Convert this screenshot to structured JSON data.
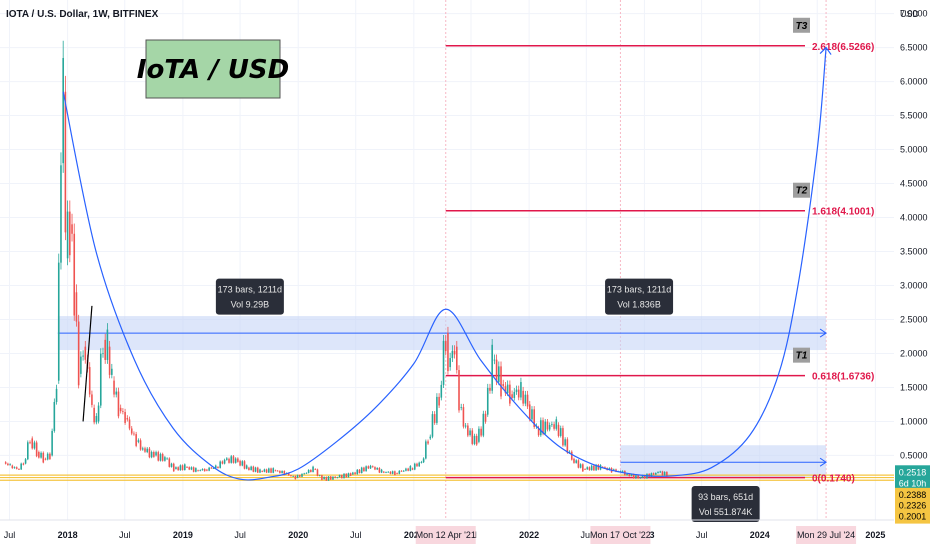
{
  "header": {
    "symbol_title": "IOTA / U.S. Dollar, 1W, BITFINEX",
    "big_label": "IoTA / USD",
    "currency": "USD"
  },
  "colors": {
    "up": "#26a69a",
    "down": "#ef5350",
    "fib": "#e0174b",
    "curve": "#2962ff",
    "zone": "#c7d6f7",
    "support": "#f5c542",
    "big_label_bg": "#a5d6a7"
  },
  "chart_data": {
    "type": "line",
    "title": "IOTA / U.S. Dollar, 1W, BITFINEX",
    "ylabel": "USD",
    "xlim": [
      "2017-06-01",
      "2025-03-01"
    ],
    "ylim": [
      -0.45,
      7.2
    ],
    "x_ticks": [
      {
        "label": "Jul",
        "date": "2017-07-01"
      },
      {
        "label": "2018",
        "date": "2018-01-01"
      },
      {
        "label": "Jul",
        "date": "2018-07-01"
      },
      {
        "label": "2019",
        "date": "2019-01-01"
      },
      {
        "label": "Jul",
        "date": "2019-07-01"
      },
      {
        "label": "2020",
        "date": "2020-01-01"
      },
      {
        "label": "Jul",
        "date": "2020-07-01"
      },
      {
        "label": "2021",
        "date": "2021-01-01"
      },
      {
        "label": "Jul",
        "date": "2021-07-01"
      },
      {
        "label": "2022",
        "date": "2022-01-01"
      },
      {
        "label": "Jul",
        "date": "2022-07-01"
      },
      {
        "label": "2023",
        "date": "2023-01-01"
      },
      {
        "label": "Jul",
        "date": "2023-07-01"
      },
      {
        "label": "2024",
        "date": "2024-01-01"
      },
      {
        "label": "Jul",
        "date": "2024-07-01"
      },
      {
        "label": "2025",
        "date": "2025-01-01"
      }
    ],
    "y_ticks": [
      {
        "label": "7.0000",
        "value": 7.0
      },
      {
        "label": "6.5000",
        "value": 6.5
      },
      {
        "label": "6.0000",
        "value": 6.0
      },
      {
        "label": "5.5000",
        "value": 5.5
      },
      {
        "label": "5.0000",
        "value": 5.0
      },
      {
        "label": "4.5000",
        "value": 4.5
      },
      {
        "label": "4.0000",
        "value": 4.0
      },
      {
        "label": "3.5000",
        "value": 3.5
      },
      {
        "label": "3.0000",
        "value": 3.0
      },
      {
        "label": "2.5000",
        "value": 2.5
      },
      {
        "label": "2.0000",
        "value": 2.0
      },
      {
        "label": "1.5000",
        "value": 1.5
      },
      {
        "label": "1.0000",
        "value": 1.0
      },
      {
        "label": "0.5000",
        "value": 0.5
      }
    ],
    "date_highlights": [
      {
        "label": "Mon 12 Apr '21",
        "date": "2021-04-12"
      },
      {
        "label": "Mon 17 Oct '22",
        "date": "2022-10-17"
      },
      {
        "label": "Mon 29 Jul '24",
        "date": "2024-07-29"
      }
    ],
    "price_series": {
      "name": "",
      "points": [
        [
          "2017-06-12",
          0.4
        ],
        [
          "2017-07-03",
          0.35
        ],
        [
          "2017-07-24",
          0.3
        ],
        [
          "2017-08-14",
          0.38
        ],
        [
          "2017-09-04",
          0.75
        ],
        [
          "2017-09-25",
          0.55
        ],
        [
          "2017-10-16",
          0.45
        ],
        [
          "2017-11-06",
          0.5
        ],
        [
          "2017-11-27",
          1.6
        ],
        [
          "2017-12-11",
          4.8
        ],
        [
          "2017-12-18",
          5.85
        ],
        [
          "2017-12-25",
          3.4
        ],
        [
          "2018-01-08",
          3.9
        ],
        [
          "2018-01-22",
          2.9
        ],
        [
          "2018-02-05",
          1.7
        ],
        [
          "2018-02-19",
          2.1
        ],
        [
          "2018-03-05",
          1.8
        ],
        [
          "2018-03-19",
          1.2
        ],
        [
          "2018-04-02",
          1.0
        ],
        [
          "2018-04-23",
          2.2
        ],
        [
          "2018-05-07",
          2.1
        ],
        [
          "2018-05-21",
          1.6
        ],
        [
          "2018-06-11",
          1.2
        ],
        [
          "2018-07-02",
          1.05
        ],
        [
          "2018-08-06",
          0.7
        ],
        [
          "2018-09-03",
          0.55
        ],
        [
          "2018-10-01",
          0.5
        ],
        [
          "2018-11-05",
          0.45
        ],
        [
          "2018-12-03",
          0.3
        ],
        [
          "2019-01-07",
          0.33
        ],
        [
          "2019-02-11",
          0.28
        ],
        [
          "2019-03-11",
          0.29
        ],
        [
          "2019-04-15",
          0.33
        ],
        [
          "2019-05-20",
          0.45
        ],
        [
          "2019-06-24",
          0.42
        ],
        [
          "2019-07-22",
          0.32
        ],
        [
          "2019-09-02",
          0.27
        ],
        [
          "2019-10-14",
          0.28
        ],
        [
          "2019-11-18",
          0.24
        ],
        [
          "2019-12-23",
          0.17
        ],
        [
          "2020-02-17",
          0.3
        ],
        [
          "2020-03-16",
          0.15
        ],
        [
          "2020-05-04",
          0.18
        ],
        [
          "2020-06-15",
          0.22
        ],
        [
          "2020-08-17",
          0.34
        ],
        [
          "2020-09-21",
          0.26
        ],
        [
          "2020-11-02",
          0.24
        ],
        [
          "2020-12-21",
          0.31
        ],
        [
          "2021-01-25",
          0.4
        ],
        [
          "2021-02-15",
          0.75
        ],
        [
          "2021-03-22",
          1.35
        ],
        [
          "2021-04-12",
          2.3
        ],
        [
          "2021-04-19",
          1.8
        ],
        [
          "2021-05-10",
          2.1
        ],
        [
          "2021-05-24",
          1.2
        ],
        [
          "2021-06-21",
          0.8
        ],
        [
          "2021-07-19",
          0.7
        ],
        [
          "2021-08-16",
          1.1
        ],
        [
          "2021-09-06",
          1.9
        ],
        [
          "2021-10-04",
          1.55
        ],
        [
          "2021-11-01",
          1.4
        ],
        [
          "2021-12-06",
          1.45
        ],
        [
          "2021-12-27",
          1.25
        ],
        [
          "2022-01-24",
          0.9
        ],
        [
          "2022-03-28",
          0.95
        ],
        [
          "2022-05-16",
          0.45
        ],
        [
          "2022-06-20",
          0.3
        ],
        [
          "2022-08-15",
          0.33
        ],
        [
          "2022-09-19",
          0.28
        ],
        [
          "2022-10-17",
          0.26
        ],
        [
          "2022-11-14",
          0.2
        ],
        [
          "2022-12-19",
          0.17
        ],
        [
          "2023-02-13",
          0.25
        ],
        [
          "2023-03-13",
          0.22
        ]
      ]
    },
    "cycle_curve": {
      "name": "",
      "points": [
        [
          "2017-12-18",
          5.85
        ],
        [
          "2018-04-01",
          3.5
        ],
        [
          "2018-08-01",
          1.9
        ],
        [
          "2018-12-01",
          0.9
        ],
        [
          "2019-04-01",
          0.35
        ],
        [
          "2019-07-01",
          0.15
        ],
        [
          "2019-10-01",
          0.18
        ],
        [
          "2020-01-01",
          0.3
        ],
        [
          "2020-05-01",
          0.7
        ],
        [
          "2020-09-01",
          1.2
        ],
        [
          "2021-01-01",
          1.85
        ],
        [
          "2021-04-12",
          2.65
        ],
        [
          "2021-08-01",
          1.9
        ],
        [
          "2021-12-01",
          1.2
        ],
        [
          "2022-04-01",
          0.65
        ],
        [
          "2022-08-01",
          0.35
        ],
        [
          "2022-12-01",
          0.22
        ],
        [
          "2023-04-01",
          0.2
        ],
        [
          "2023-08-01",
          0.32
        ],
        [
          "2023-12-01",
          0.8
        ],
        [
          "2024-03-01",
          1.7
        ],
        [
          "2024-05-01",
          3.0
        ],
        [
          "2024-07-01",
          5.0
        ],
        [
          "2024-07-29",
          6.5
        ]
      ]
    },
    "fib_levels": [
      {
        "label": "2.618(6.5266)",
        "value": 6.5266,
        "tag": "T3",
        "start": "2021-04-12"
      },
      {
        "label": "1.618(4.1001)",
        "value": 4.1001,
        "tag": "T2",
        "start": "2021-04-12"
      },
      {
        "label": "0.618(1.6736)",
        "value": 1.6736,
        "tag": "T1",
        "start": "2021-04-12"
      },
      {
        "label": "0(0.1740)",
        "value": 0.174,
        "tag": "",
        "start": "2021-04-12"
      }
    ],
    "zones": [
      {
        "from": "2017-12-01",
        "to": "2024-07-29",
        "low": 2.05,
        "high": 2.55,
        "mid": 2.3
      },
      {
        "from": "2022-10-17",
        "to": "2024-07-29",
        "low": 0.18,
        "high": 0.65,
        "mid": 0.4
      }
    ],
    "support_lines": [
      0.135,
      0.174,
      0.21
    ],
    "trend_segment": [
      [
        "2018-02-19",
        1.0
      ],
      [
        "2018-03-19",
        2.7
      ]
    ],
    "price_tags": [
      {
        "label": "0.2518",
        "value": 0.2518,
        "color": "#26a69a",
        "text_color": "white"
      },
      {
        "label": "6d 10h",
        "value": 0.09,
        "color": "#26a69a",
        "text_color": "white"
      },
      {
        "label": "0.2388",
        "value": -0.08,
        "color": "#f5c542",
        "text_color": "black"
      },
      {
        "label": "0.2326",
        "value": -0.24,
        "color": "#f5c542",
        "text_color": "black"
      },
      {
        "label": "0.2001",
        "value": -0.4,
        "color": "#f5c542",
        "text_color": "black"
      }
    ],
    "tooltips": [
      {
        "line1": "173 bars, 1211d",
        "line2": "Vol 9.29B",
        "date": "2019-08-01",
        "value": 2.85
      },
      {
        "line1": "173 bars, 1211d",
        "line2": "Vol 1.836B",
        "date": "2022-12-15",
        "value": 2.85
      },
      {
        "line1": "93 bars, 651d",
        "line2": "Vol 551.874K",
        "date": "2023-09-15",
        "value": -0.2
      }
    ]
  }
}
